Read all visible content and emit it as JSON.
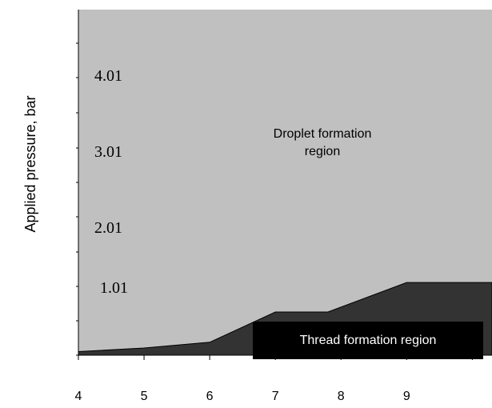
{
  "chart_data": {
    "type": "area",
    "title": "",
    "ylabel": "Applied pressure, bar",
    "xlabel": "",
    "x_ticks": [
      "4",
      "5",
      "6",
      "7",
      "8",
      "9"
    ],
    "y_value_labels": [
      "4.01",
      "3.01",
      "2.01",
      "1.01"
    ],
    "xlim": [
      4,
      10.3
    ],
    "ylim": [
      0,
      4.8
    ],
    "grid": false,
    "regions": [
      {
        "name": "Droplet formation region",
        "color": "#c0c0c0",
        "text_color": "#000000"
      },
      {
        "name": "Thread formation region",
        "color": "#333333",
        "text_color": "#ffffff",
        "boundary": {
          "x": [
            4,
            5,
            6,
            7,
            7.8,
            9,
            10.3
          ],
          "y": [
            0.05,
            0.1,
            0.18,
            0.6,
            0.6,
            1.01,
            1.01
          ]
        }
      }
    ]
  }
}
